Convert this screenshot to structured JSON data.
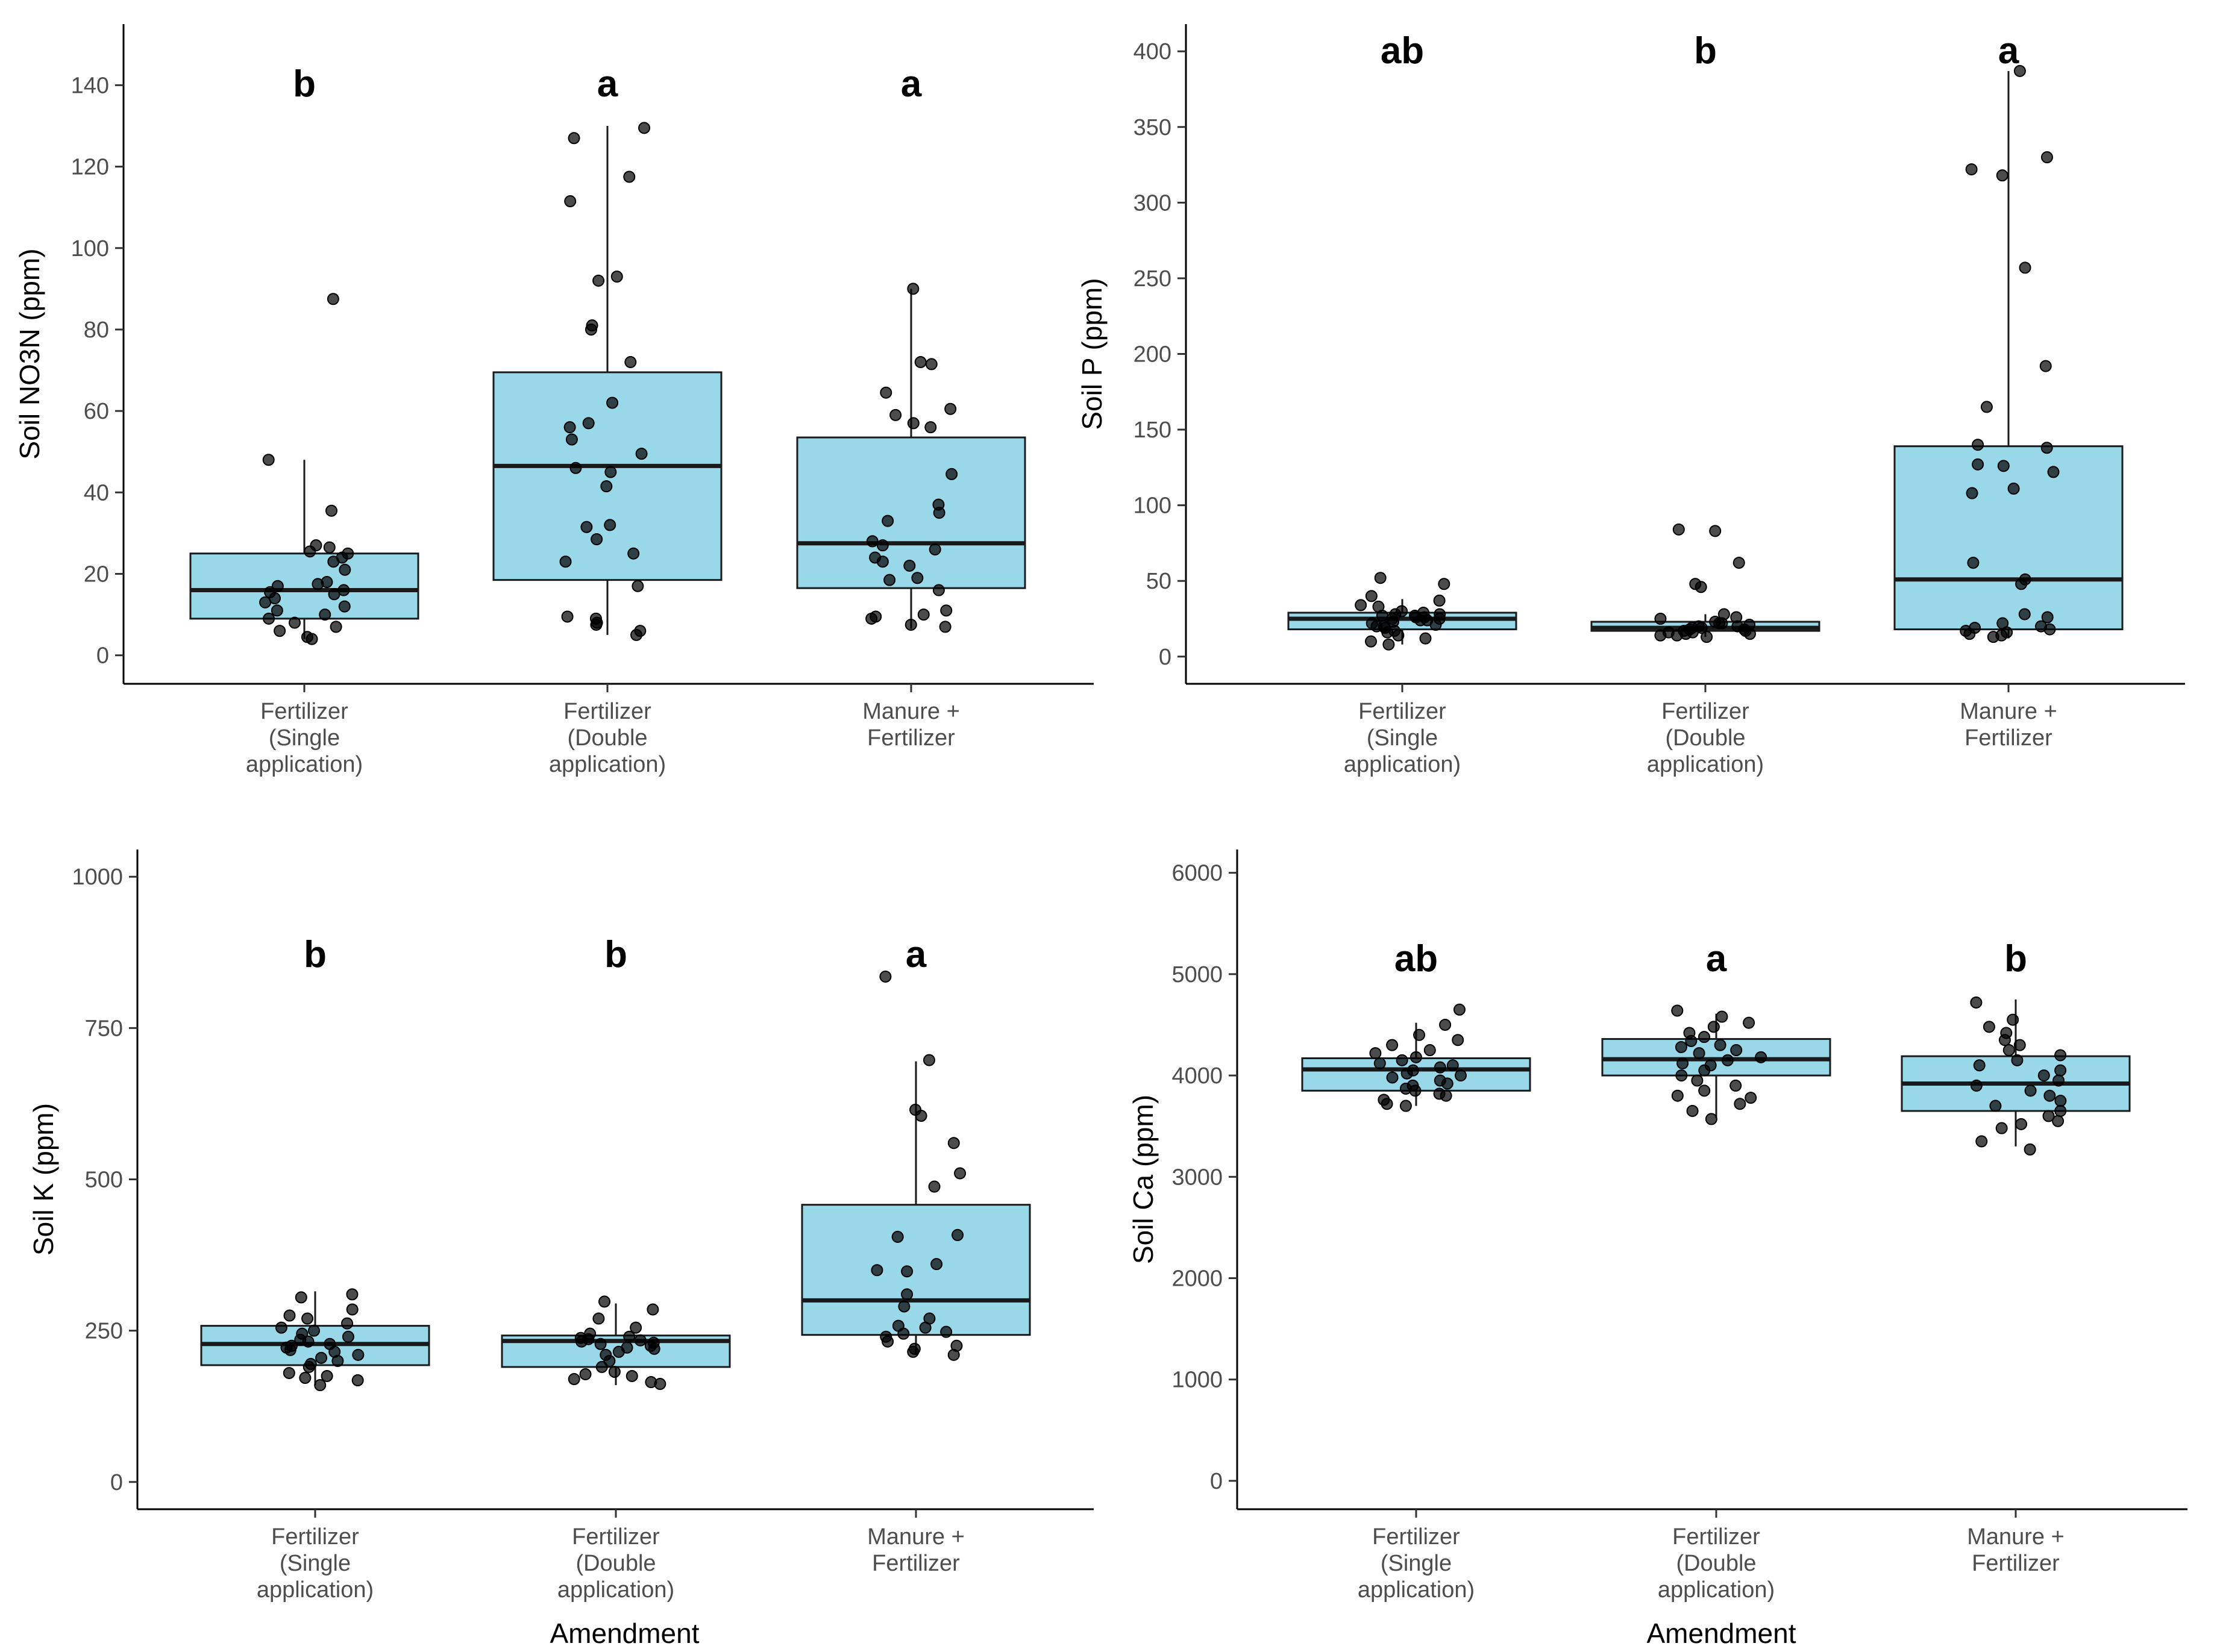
{
  "colors": {
    "box_fill": "#99d8e8",
    "box_stroke": "#1a1a1a",
    "point": "#000000",
    "axis": "#000000",
    "tick_text": "#4d4d4d"
  },
  "chart_data": [
    {
      "type": "boxplot",
      "ylabel": "Soil NO3N (ppm)",
      "xlabel": "",
      "ylim": [
        -7,
        155
      ],
      "yticks": [
        0,
        20,
        40,
        60,
        80,
        100,
        120,
        140
      ],
      "categories": [
        {
          "lines": [
            "Fertilizer",
            "(Single",
            "application)"
          ],
          "letter": "b",
          "q1": 9,
          "median": 16,
          "q3": 25,
          "wlow": 4,
          "whigh": 48,
          "points": [
            87.5,
            48,
            35.5,
            27,
            26.5,
            25.5,
            25,
            24,
            23,
            21,
            18,
            17.5,
            17,
            16,
            15.5,
            15,
            14,
            13,
            12,
            11,
            10,
            9,
            8,
            7,
            6,
            4.5,
            4
          ]
        },
        {
          "lines": [
            "Fertilizer",
            "(Double",
            "application)"
          ],
          "letter": "a",
          "q1": 18.5,
          "median": 46.5,
          "q3": 69.5,
          "wlow": 5,
          "whigh": 130,
          "points": [
            129.5,
            127,
            117.5,
            111.5,
            93,
            92,
            81,
            80,
            72,
            62,
            57,
            56,
            53,
            49.5,
            46,
            45,
            41.5,
            32,
            31.5,
            28.5,
            25,
            23,
            17,
            9.5,
            9,
            8,
            7.5,
            6,
            5
          ]
        },
        {
          "lines": [
            "Manure +",
            "Fertilizer"
          ],
          "letter": "a",
          "q1": 16.5,
          "median": 27.5,
          "q3": 53.5,
          "wlow": 6.5,
          "whigh": 90,
          "points": [
            90,
            72,
            71.5,
            64.5,
            60.5,
            59,
            57,
            56,
            44.5,
            37,
            35,
            33,
            28,
            27,
            26,
            24,
            23,
            22,
            19,
            18.5,
            16,
            11,
            10,
            9.5,
            9,
            7.5,
            7
          ]
        }
      ]
    },
    {
      "type": "boxplot",
      "ylabel": "Soil P (ppm)",
      "xlabel": "",
      "ylim": [
        -18,
        418
      ],
      "yticks": [
        0,
        50,
        100,
        150,
        200,
        250,
        300,
        350,
        400
      ],
      "categories": [
        {
          "lines": [
            "Fertilizer",
            "(Single",
            "application)"
          ],
          "letter": "ab",
          "q1": 18,
          "median": 25,
          "q3": 29,
          "wlow": 8,
          "whigh": 38,
          "points": [
            52,
            48,
            40,
            37,
            34,
            33,
            30,
            29,
            28,
            28,
            27,
            27,
            26,
            26,
            25,
            25,
            24,
            24,
            23,
            22,
            21,
            20,
            20,
            19,
            17,
            16,
            14,
            12,
            10,
            8
          ]
        },
        {
          "lines": [
            "Fertilizer",
            "(Double",
            "application)"
          ],
          "letter": "b",
          "q1": 17,
          "median": 19,
          "q3": 23,
          "wlow": 13,
          "whigh": 28,
          "points": [
            84,
            83,
            62,
            48,
            46,
            28,
            26,
            25,
            23,
            22,
            22,
            21,
            20,
            20,
            19,
            19,
            18,
            18,
            17,
            17,
            16,
            16,
            15,
            15,
            14,
            14,
            13
          ]
        },
        {
          "lines": [
            "Manure +",
            "Fertilizer"
          ],
          "letter": "a",
          "q1": 18,
          "median": 51,
          "q3": 139,
          "wlow": 12,
          "whigh": 387,
          "points": [
            387,
            330,
            322,
            318,
            257,
            192,
            165,
            140,
            138,
            127,
            126,
            122,
            111,
            108,
            62,
            51,
            48,
            28,
            26,
            22,
            20,
            19,
            18,
            17,
            16,
            15,
            14,
            13
          ]
        }
      ]
    },
    {
      "type": "boxplot",
      "ylabel": "Soil K (ppm)",
      "xlabel": "Amendment",
      "ylim": [
        -45,
        1045
      ],
      "yticks": [
        0,
        250,
        500,
        750,
        1000
      ],
      "categories": [
        {
          "lines": [
            "Fertilizer",
            "(Single",
            "application)"
          ],
          "letter": "b",
          "q1": 193,
          "median": 228,
          "q3": 258,
          "wlow": 160,
          "whigh": 315,
          "points": [
            310,
            305,
            285,
            275,
            270,
            262,
            255,
            250,
            245,
            240,
            235,
            232,
            228,
            225,
            222,
            218,
            215,
            210,
            205,
            200,
            195,
            190,
            180,
            175,
            172,
            168,
            160
          ]
        },
        {
          "lines": [
            "Fertilizer",
            "(Double",
            "application)"
          ],
          "letter": "b",
          "q1": 190,
          "median": 233,
          "q3": 242,
          "wlow": 160,
          "whigh": 295,
          "points": [
            298,
            285,
            270,
            255,
            245,
            240,
            238,
            236,
            234,
            232,
            230,
            228,
            225,
            222,
            220,
            215,
            210,
            200,
            190,
            182,
            178,
            175,
            170,
            165,
            162
          ]
        },
        {
          "lines": [
            "Manure +",
            "Fertilizer"
          ],
          "letter": "a",
          "q1": 243,
          "median": 300,
          "q3": 458,
          "wlow": 210,
          "whigh": 695,
          "points": [
            835,
            697,
            615,
            605,
            560,
            510,
            488,
            408,
            405,
            360,
            350,
            348,
            310,
            290,
            270,
            258,
            255,
            248,
            245,
            240,
            232,
            225,
            220,
            215,
            210
          ]
        }
      ]
    },
    {
      "type": "boxplot",
      "ylabel": "Soil Ca (ppm)",
      "xlabel": "Amendment",
      "ylim": [
        -280,
        6230
      ],
      "yticks": [
        0,
        1000,
        2000,
        3000,
        4000,
        5000,
        6000
      ],
      "categories": [
        {
          "lines": [
            "Fertilizer",
            "(Single",
            "application)"
          ],
          "letter": "ab",
          "q1": 3850,
          "median": 4060,
          "q3": 4170,
          "wlow": 3700,
          "whigh": 4520,
          "points": [
            4650,
            4500,
            4400,
            4350,
            4300,
            4250,
            4220,
            4180,
            4150,
            4120,
            4100,
            4080,
            4050,
            4020,
            4000,
            3980,
            3950,
            3920,
            3900,
            3870,
            3850,
            3820,
            3800,
            3760,
            3720,
            3700
          ]
        },
        {
          "lines": [
            "Fertilizer",
            "(Double",
            "application)"
          ],
          "letter": "a",
          "q1": 4000,
          "median": 4160,
          "q3": 4360,
          "wlow": 3580,
          "whigh": 4610,
          "points": [
            4640,
            4580,
            4520,
            4480,
            4420,
            4380,
            4340,
            4300,
            4280,
            4250,
            4220,
            4180,
            4150,
            4120,
            4100,
            4050,
            4000,
            3950,
            3900,
            3850,
            3800,
            3780,
            3720,
            3650,
            3570
          ]
        },
        {
          "lines": [
            "Manure +",
            "Fertilizer"
          ],
          "letter": "b",
          "q1": 3650,
          "median": 3920,
          "q3": 4190,
          "wlow": 3300,
          "whigh": 4750,
          "points": [
            4720,
            4550,
            4480,
            4420,
            4350,
            4300,
            4250,
            4200,
            4150,
            4100,
            4050,
            4000,
            3950,
            3900,
            3850,
            3800,
            3750,
            3700,
            3650,
            3600,
            3550,
            3520,
            3480,
            3350,
            3270
          ]
        }
      ]
    }
  ]
}
